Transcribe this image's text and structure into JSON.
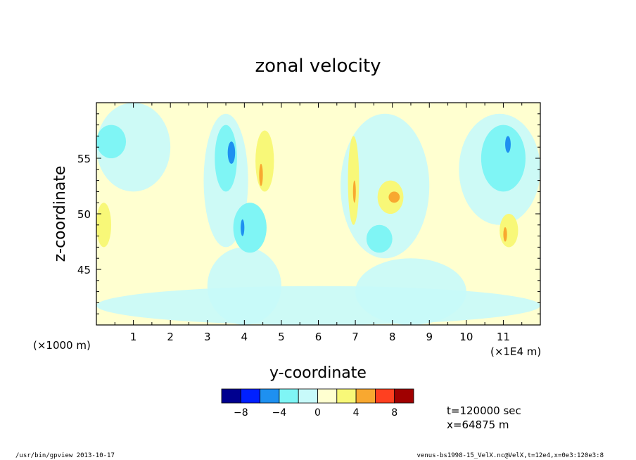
{
  "chart_data": {
    "type": "heatmap",
    "title": "zonal velocity",
    "xlabel": "y-coordinate",
    "ylabel": "z-coordinate",
    "x_unit_label": "(×1000 m)",
    "x_scale_label": "(×1E4 m)",
    "xlim": [
      0,
      12
    ],
    "ylim": [
      40,
      60
    ],
    "xticks": [
      "1",
      "2",
      "3",
      "4",
      "5",
      "6",
      "7",
      "8",
      "9",
      "10",
      "11"
    ],
    "yticks": [
      "45",
      "50",
      "55"
    ],
    "colorbar": {
      "levels": [
        -10,
        -8,
        -6,
        -4,
        -2,
        0,
        2,
        4,
        6,
        8,
        10
      ],
      "tick_labels": [
        "-8",
        "-4",
        "0",
        "4",
        "8"
      ],
      "colors": [
        "#00008f",
        "#0020ff",
        "#1e90f0",
        "#7ff5f5",
        "#c8fafa",
        "#ffffd0",
        "#f8f878",
        "#f8a830",
        "#ff4020",
        "#a00000"
      ]
    },
    "features": [
      {
        "level": -1,
        "x": [
          3.7,
          4.6
        ],
        "y": [
          46.5,
          51
        ]
      },
      {
        "level": -1,
        "x": [
          7.3,
          8.0
        ],
        "y": [
          46.5,
          49
        ]
      },
      {
        "level": -1,
        "x": [
          3.2,
          3.8
        ],
        "y": [
          52,
          58
        ]
      },
      {
        "level": -1,
        "x": [
          10.4,
          11.6
        ],
        "y": [
          52,
          58
        ]
      },
      {
        "level": -1,
        "x": [
          0.0,
          0.8
        ],
        "y": [
          55,
          58
        ]
      },
      {
        "level": -2,
        "x": [
          3.55,
          3.75
        ],
        "y": [
          54.5,
          56.5
        ]
      },
      {
        "level": -2,
        "x": [
          3.9,
          4.0
        ],
        "y": [
          48,
          49.5
        ]
      },
      {
        "level": -2,
        "x": [
          11.05,
          11.2
        ],
        "y": [
          55.5,
          57
        ]
      },
      {
        "level": 1,
        "x": [
          4.3,
          4.8
        ],
        "y": [
          52,
          57.5
        ]
      },
      {
        "level": 1,
        "x": [
          6.8,
          7.1
        ],
        "y": [
          49,
          57
        ]
      },
      {
        "level": 1,
        "x": [
          7.6,
          8.3
        ],
        "y": [
          50,
          53
        ]
      },
      {
        "level": 1,
        "x": [
          10.9,
          11.4
        ],
        "y": [
          47,
          50
        ]
      },
      {
        "level": 1,
        "x": [
          0.0,
          0.4
        ],
        "y": [
          47,
          51
        ]
      },
      {
        "level": 2,
        "x": [
          4.4,
          4.5
        ],
        "y": [
          52.5,
          54.5
        ]
      },
      {
        "level": 2,
        "x": [
          6.95,
          7.0
        ],
        "y": [
          51,
          53
        ]
      },
      {
        "level": 2,
        "x": [
          7.9,
          8.2
        ],
        "y": [
          51,
          52
        ]
      },
      {
        "level": 2,
        "x": [
          11.0,
          11.1
        ],
        "y": [
          47.5,
          48.8
        ]
      }
    ]
  },
  "annotations": {
    "time": "t=120000 sec",
    "position": "x=64875 m"
  },
  "footer": {
    "left": "/usr/bin/gpview  2013-10-17",
    "right": "venus-bs1998-15_VelX.nc@VelX,t=12e4,x=0e3:120e3:8"
  }
}
